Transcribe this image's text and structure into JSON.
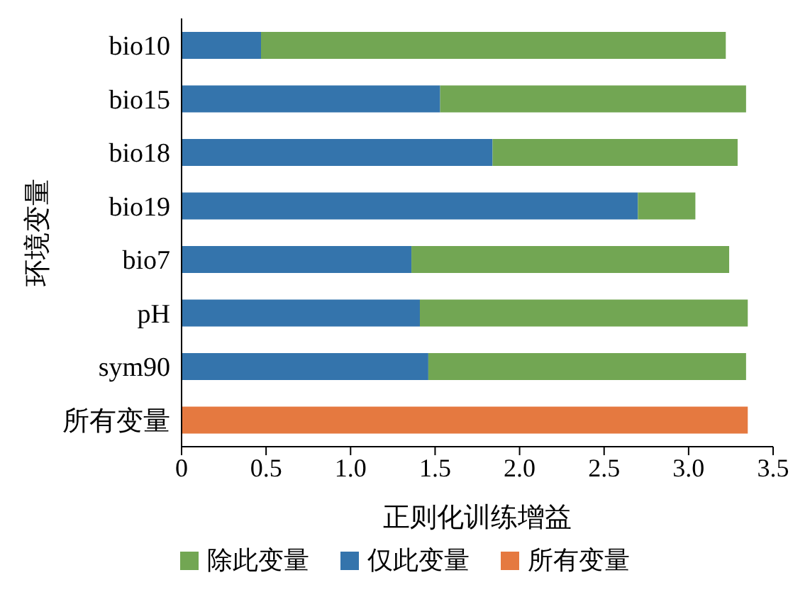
{
  "chart_data": {
    "type": "bar",
    "orientation": "horizontal",
    "stacked": true,
    "xlabel": "正则化训练增益",
    "ylabel": "环境变量",
    "categories": [
      "bio10",
      "bio15",
      "bio18",
      "bio19",
      "bio7",
      "pH",
      "sym90",
      "所有变量"
    ],
    "series": [
      {
        "name": "仅此变量",
        "color": "#3474ac",
        "values": [
          0.47,
          1.53,
          1.84,
          2.7,
          1.36,
          1.41,
          1.46,
          null
        ]
      },
      {
        "name": "除此变量",
        "color": "#72a653",
        "values": [
          2.75,
          1.81,
          1.45,
          0.34,
          1.88,
          1.94,
          1.88,
          null
        ]
      },
      {
        "name": "所有变量",
        "color": "#e57940",
        "values": [
          null,
          null,
          null,
          null,
          null,
          null,
          null,
          3.35
        ]
      }
    ],
    "xlim": [
      0,
      3.5
    ],
    "xticks": [
      0,
      0.5,
      {
        "value": 1,
        "label": "1.0"
      },
      1.5,
      {
        "value": 2,
        "label": "2.0"
      },
      2.5,
      {
        "value": 3,
        "label": "3.0"
      },
      3.5
    ],
    "grid": false,
    "legend": "bottom"
  }
}
